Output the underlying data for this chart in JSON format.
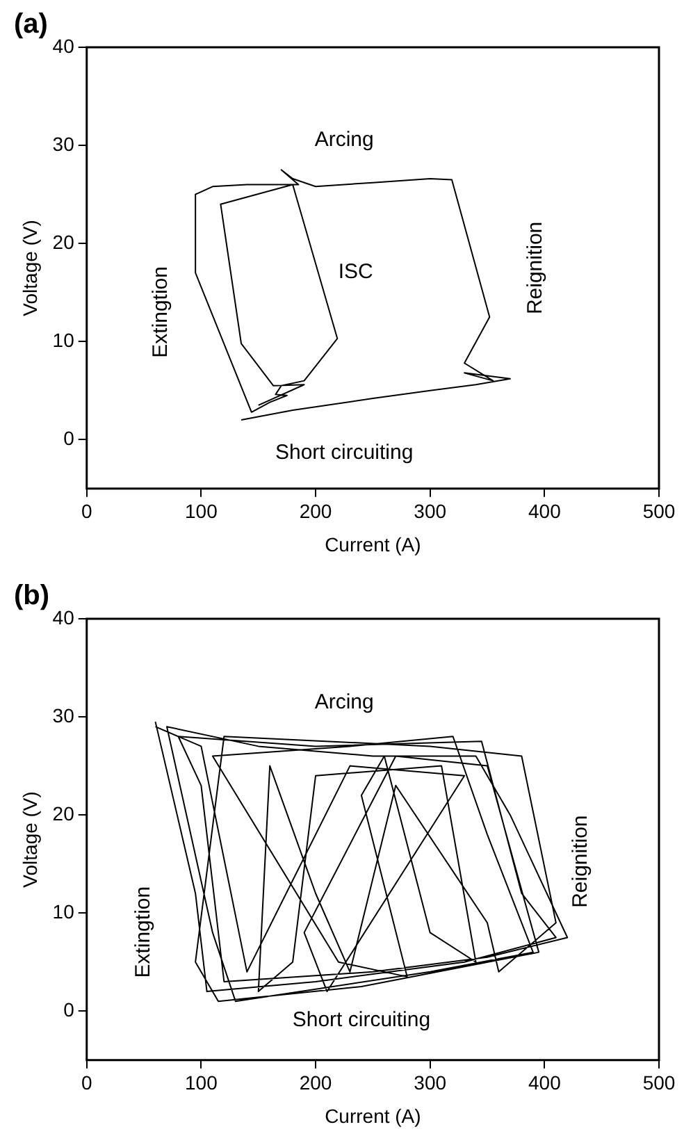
{
  "chart_data": [
    {
      "type": "line",
      "title": "(a)",
      "xlabel": "Current (A)",
      "ylabel": "Voltage (V)",
      "color": "#000000",
      "marker": "none",
      "grid": false,
      "x": [
        135,
        180,
        250,
        300,
        340,
        370,
        350,
        330,
        355,
        330,
        352,
        319,
        300,
        250,
        200,
        180,
        170,
        185,
        140,
        110,
        95,
        95,
        144,
        160,
        175,
        165,
        170,
        190,
        219,
        180,
        117,
        135,
        163,
        190,
        150
      ],
      "values": [
        2,
        3,
        4.2,
        5,
        5.6,
        6.2,
        6.5,
        6.8,
        6,
        7.8,
        12.5,
        26.5,
        26.6,
        26.2,
        25.8,
        26.6,
        27.5,
        26,
        26,
        25.8,
        25,
        17,
        2.8,
        3.8,
        4.5,
        4.6,
        5.5,
        6,
        10.3,
        26,
        24,
        9.8,
        5.5,
        5.6,
        3.5
      ],
      "xlim": [
        0,
        500
      ],
      "ylim": [
        -5,
        40
      ],
      "xticks": [
        0,
        100,
        200,
        300,
        400,
        500
      ],
      "yticks": [
        0,
        10,
        20,
        30,
        40
      ],
      "annotations": [
        "Arcing",
        "ISC",
        "Extingtion",
        "Reignition",
        "Short circuiting"
      ]
    },
    {
      "type": "line",
      "title": "(b)",
      "xlabel": "Current (A)",
      "ylabel": "Voltage (V)",
      "color": "#000000",
      "marker": "none",
      "grid": false,
      "x": [
        60,
        95,
        105,
        200,
        330,
        410,
        380,
        345,
        200,
        80,
        100,
        120,
        250,
        350,
        420,
        370,
        340,
        250,
        150,
        70,
        110,
        130,
        300,
        390,
        350,
        320,
        230,
        110,
        220,
        280,
        240,
        260,
        300,
        340,
        310,
        200,
        180,
        150,
        160,
        200,
        230,
        270,
        350,
        360,
        410,
        380,
        300,
        120,
        95,
        115,
        240,
        395,
        350,
        270,
        190,
        210,
        330,
        230,
        140,
        100,
        60
      ],
      "values": [
        29.5,
        12,
        2,
        3,
        5,
        7.5,
        12,
        27.5,
        27,
        28,
        23,
        3,
        4,
        5.5,
        7.5,
        20,
        26,
        26,
        27,
        29,
        8,
        1,
        4,
        6,
        18,
        28,
        27,
        26,
        5,
        3.5,
        22,
        26,
        8,
        5,
        25,
        24,
        5,
        2,
        25,
        12,
        4,
        23,
        9,
        4,
        9,
        26,
        27,
        28,
        5,
        1,
        2.5,
        6,
        25,
        26,
        8,
        2,
        24,
        25,
        4,
        27,
        29
      ],
      "xlim": [
        0,
        500
      ],
      "ylim": [
        -5,
        40
      ],
      "xticks": [
        0,
        100,
        200,
        300,
        400,
        500
      ],
      "yticks": [
        0,
        10,
        20,
        30,
        40
      ],
      "annotations": [
        "Arcing",
        "Extingtion",
        "Reignition",
        "Short circuiting"
      ]
    }
  ]
}
